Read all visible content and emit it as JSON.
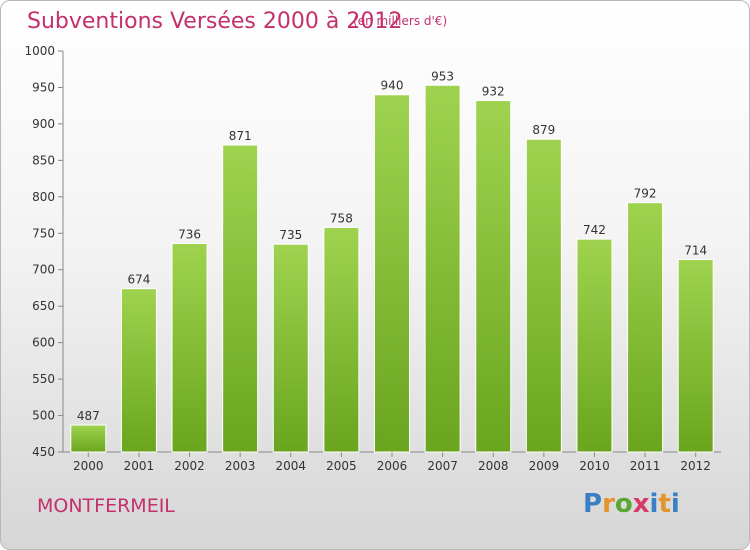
{
  "title": "Subventions Versées 2000 à 2012",
  "subtitle": "(en milliers d'€)",
  "commune": "MONTFERMEIL",
  "logo_text": "Proxiti",
  "colors": {
    "title": "#c4306b",
    "bar_top": "#9fd34f",
    "bar_bottom": "#6aa51e"
  },
  "chart_data": {
    "type": "bar",
    "title": "Subventions Versées 2000 à 2012",
    "subtitle": "(en milliers d'€)",
    "xlabel": "",
    "ylabel": "",
    "categories": [
      "2000",
      "2001",
      "2002",
      "2003",
      "2004",
      "2005",
      "2006",
      "2007",
      "2008",
      "2009",
      "2010",
      "2011",
      "2012"
    ],
    "values": [
      487,
      674,
      736,
      871,
      735,
      758,
      940,
      953,
      932,
      879,
      742,
      792,
      714
    ],
    "ylim": [
      450,
      1000
    ],
    "yticks": [
      450,
      500,
      550,
      600,
      650,
      700,
      750,
      800,
      850,
      900,
      950,
      1000
    ],
    "grid": false,
    "legend": "none"
  }
}
